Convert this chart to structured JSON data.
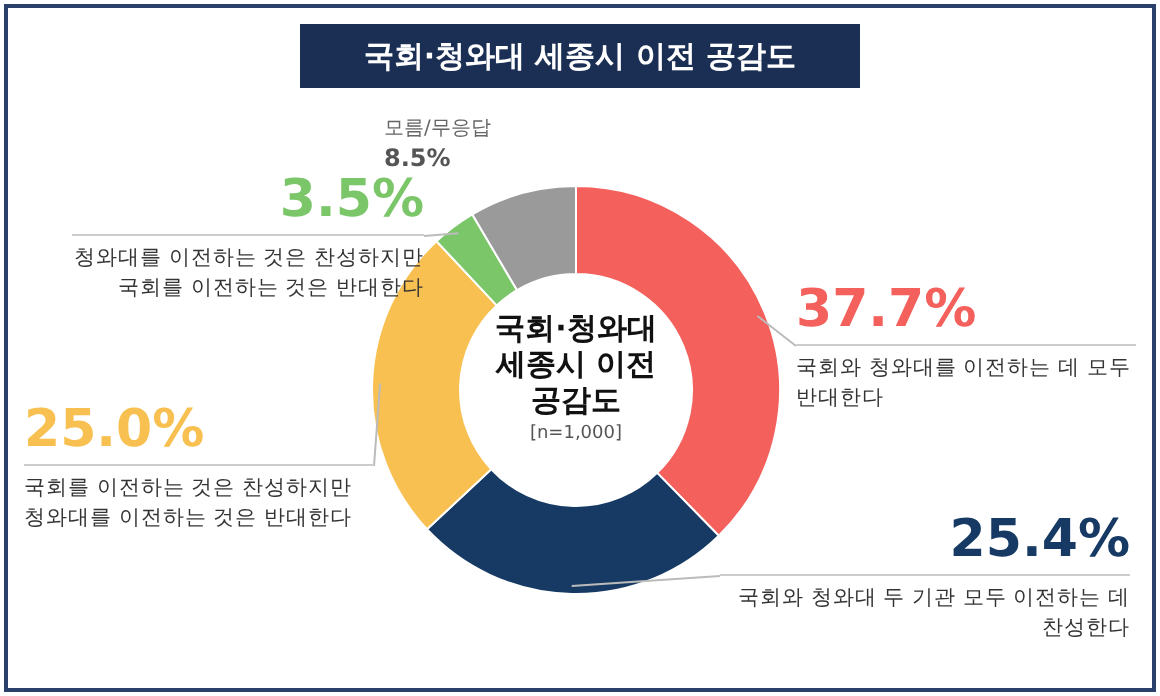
{
  "chart_data": {
    "type": "donut",
    "title": "국회·청와대 세종시 이전 공감도",
    "categories": [
      "국회와 청와대를 이전하는 데 모두 반대한다",
      "국회와 청와대 두 기관 모두 이전하는 데 찬성한다",
      "국회를 이전하는 것은 찬성하지만 청와대를 이전하는 것은 반대한다",
      "청와대를 이전하는 것은 찬성하지만 국회를 이전하는 것은 반대한다",
      "모름/무응답"
    ],
    "values": [
      37.7,
      25.4,
      25.0,
      3.5,
      8.5
    ],
    "value_labels": [
      "37.7%",
      "25.4%",
      "25.0%",
      "3.5%",
      "8.5%"
    ],
    "colors": [
      "#f4605c",
      "#163a63",
      "#f8c050",
      "#7cc66a",
      "#9a9a9a"
    ],
    "annotations": [
      "국회·청와대 세종시 이전 공감도",
      "[n=1,000]"
    ]
  }
}
